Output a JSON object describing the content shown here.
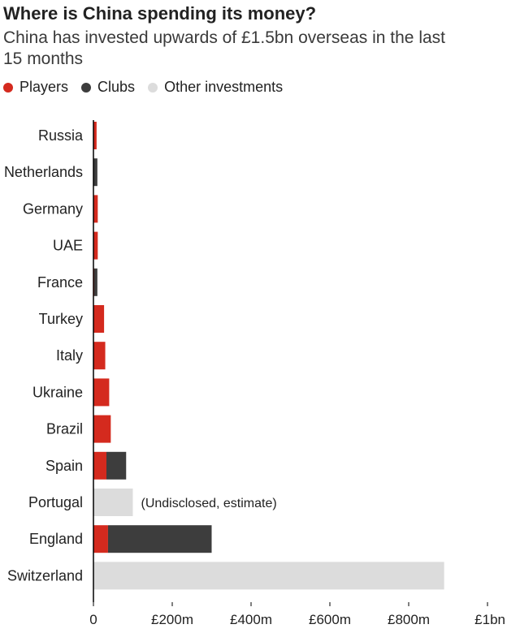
{
  "chart_data": {
    "type": "bar",
    "orientation": "horizontal",
    "stacked": true,
    "title": "Where is China spending its money?",
    "subtitle": "China has invested upwards of £1.5bn overseas in the last 15 months",
    "categories": [
      "Russia",
      "Netherlands",
      "Germany",
      "UAE",
      "France",
      "Turkey",
      "Italy",
      "Ukraine",
      "Brazil",
      "Spain",
      "Portugal",
      "England",
      "Switzerland"
    ],
    "series": [
      {
        "name": "Players",
        "color": "#d42a1e",
        "values": [
          8,
          0,
          11,
          11,
          2,
          27,
          30,
          40,
          44,
          33,
          0,
          37,
          0
        ]
      },
      {
        "name": "Clubs",
        "color": "#3d3d3d",
        "values": [
          0,
          10,
          0,
          0,
          8,
          0,
          0,
          0,
          0,
          50,
          0,
          263,
          0
        ]
      },
      {
        "name": "Other investments",
        "color": "#dcdcdc",
        "values": [
          0,
          0,
          0,
          0,
          0,
          0,
          0,
          0,
          0,
          0,
          100,
          0,
          890
        ]
      }
    ],
    "annotations": [
      {
        "category": "Portugal",
        "text": "(Undisclosed, estimate)"
      }
    ],
    "x_ticks": [
      {
        "value": 0,
        "label": "0"
      },
      {
        "value": 200,
        "label": "£200m"
      },
      {
        "value": 400,
        "label": "£400m"
      },
      {
        "value": 600,
        "label": "£600m"
      },
      {
        "value": 800,
        "label": "£800m"
      },
      {
        "value": 1000,
        "label": "£1bn"
      }
    ],
    "xlim": [
      0,
      1000
    ],
    "grid": false,
    "legend_position": "top-left"
  }
}
